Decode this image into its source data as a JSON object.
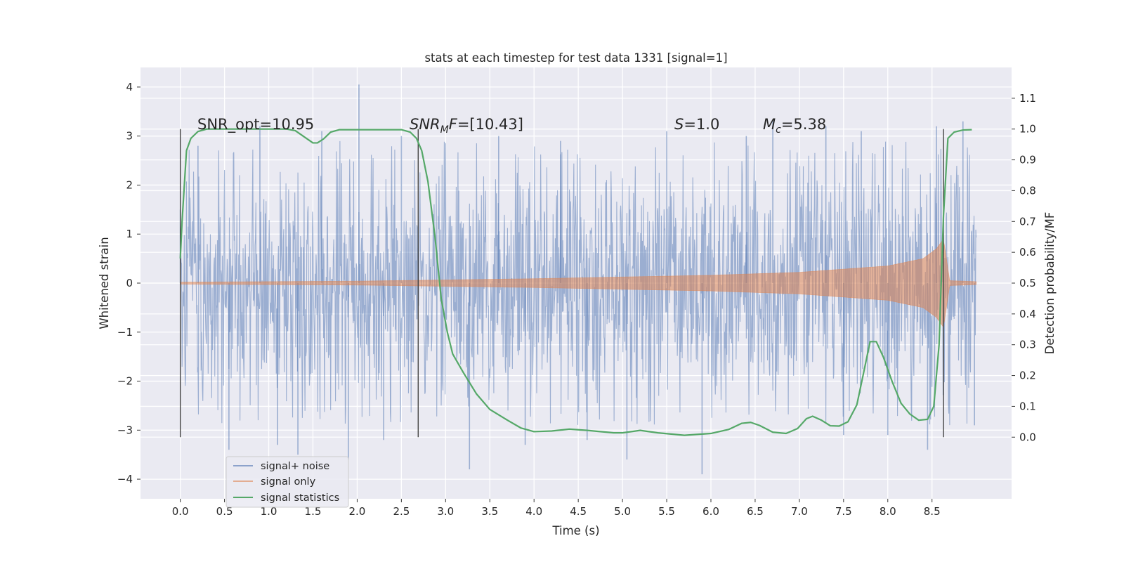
{
  "chart_data": {
    "type": "line",
    "title": "stats at each timestep for test data 1331 [signal=1]",
    "xlabel": "Time (s)",
    "ylabel": "Whitened strain",
    "y2label": "Detection probability/MF",
    "xlim": [
      -0.45,
      9.4
    ],
    "ylim": [
      -4.4,
      4.4
    ],
    "y2lim": [
      -0.2,
      1.2
    ],
    "x_ticks": [
      "0.0",
      "0.5",
      "1.0",
      "1.5",
      "2.0",
      "2.5",
      "3.0",
      "3.5",
      "4.0",
      "4.5",
      "5.0",
      "5.5",
      "6.0",
      "6.5",
      "7.0",
      "7.5",
      "8.0",
      "8.5"
    ],
    "y_ticks": [
      "4",
      "3",
      "2",
      "1",
      "0",
      "−1",
      "−2",
      "−3",
      "−4"
    ],
    "y2_ticks": [
      "1.1",
      "1.0",
      "0.9",
      "0.8",
      "0.7",
      "0.6",
      "0.5",
      "0.4",
      "0.3",
      "0.2",
      "0.1",
      "0.0"
    ],
    "grid": true,
    "background": "#eaeaf2",
    "annotations": [
      {
        "text": "SNR_opt=10.95",
        "x": 0.2,
        "y2": 0.99
      },
      {
        "text": "SNR_MF=[10.43]",
        "x": 2.6,
        "y2": 0.99
      },
      {
        "text": "S=1.0",
        "x": 5.6,
        "y2": 0.99
      },
      {
        "text": "M_c=5.38",
        "x": 6.6,
        "y2": 0.99
      }
    ],
    "vertical_lines": [
      0.0,
      2.69,
      8.63
    ],
    "legend": {
      "position": "lower-left",
      "entries": [
        "signal+ noise",
        "signal only",
        "signal statistics"
      ]
    },
    "series": [
      {
        "name": "signal+ noise",
        "color": "#4c72b0",
        "opacity": 0.5,
        "x_range": [
          0.0,
          9.0
        ],
        "typical_envelope": [
          -1.4,
          1.4
        ],
        "extremes": [
          {
            "x": 0.0,
            "y": 1.5
          },
          {
            "x": 0.2,
            "y": 2.8
          },
          {
            "x": 0.55,
            "y": -3.4
          },
          {
            "x": 0.9,
            "y": 3.2
          },
          {
            "x": 1.1,
            "y": -3.3
          },
          {
            "x": 1.33,
            "y": -3.5
          },
          {
            "x": 1.6,
            "y": 3.1
          },
          {
            "x": 1.9,
            "y": -3.6
          },
          {
            "x": 2.02,
            "y": 4.05
          },
          {
            "x": 2.3,
            "y": -3.2
          },
          {
            "x": 2.5,
            "y": 3.0
          },
          {
            "x": 3.27,
            "y": -3.8
          },
          {
            "x": 3.6,
            "y": 3.0
          },
          {
            "x": 3.9,
            "y": -3.3
          },
          {
            "x": 4.3,
            "y": 2.9
          },
          {
            "x": 4.6,
            "y": -3.2
          },
          {
            "x": 5.05,
            "y": -3.6
          },
          {
            "x": 5.5,
            "y": 3.1
          },
          {
            "x": 5.9,
            "y": -3.9
          },
          {
            "x": 6.4,
            "y": 3.0
          },
          {
            "x": 6.7,
            "y": 3.3
          },
          {
            "x": 7.3,
            "y": 3.2
          },
          {
            "x": 7.5,
            "y": -3.1
          },
          {
            "x": 7.7,
            "y": 3.1
          },
          {
            "x": 8.0,
            "y": -3.1
          },
          {
            "x": 8.45,
            "y": -3.4
          },
          {
            "x": 8.55,
            "y": 3.2
          },
          {
            "x": 8.85,
            "y": 3.3
          },
          {
            "x": 8.98,
            "y": -2.9
          }
        ]
      },
      {
        "name": "signal only",
        "color": "#dd8452",
        "opacity": 0.5,
        "x_range": [
          0.0,
          9.0
        ],
        "amplitude": [
          {
            "x": 0.0,
            "y": 0.02
          },
          {
            "x": 2.0,
            "y": 0.04
          },
          {
            "x": 4.0,
            "y": 0.09
          },
          {
            "x": 6.0,
            "y": 0.16
          },
          {
            "x": 7.0,
            "y": 0.22
          },
          {
            "x": 8.0,
            "y": 0.35
          },
          {
            "x": 8.4,
            "y": 0.5
          },
          {
            "x": 8.55,
            "y": 0.7
          },
          {
            "x": 8.63,
            "y": 0.9
          },
          {
            "x": 8.7,
            "y": 0.05
          },
          {
            "x": 9.0,
            "y": 0.03
          }
        ]
      },
      {
        "name": "signal statistics",
        "color": "#55a868",
        "axis": "right",
        "points": [
          {
            "x": 0.0,
            "y": 0.58
          },
          {
            "x": 0.02,
            "y": 0.7
          },
          {
            "x": 0.07,
            "y": 0.93
          },
          {
            "x": 0.12,
            "y": 0.97
          },
          {
            "x": 0.2,
            "y": 0.992
          },
          {
            "x": 0.3,
            "y": 1.0
          },
          {
            "x": 1.2,
            "y": 1.0
          },
          {
            "x": 1.3,
            "y": 0.995
          },
          {
            "x": 1.4,
            "y": 0.975
          },
          {
            "x": 1.5,
            "y": 0.955
          },
          {
            "x": 1.55,
            "y": 0.955
          },
          {
            "x": 1.62,
            "y": 0.968
          },
          {
            "x": 1.7,
            "y": 0.99
          },
          {
            "x": 1.8,
            "y": 0.998
          },
          {
            "x": 2.5,
            "y": 0.998
          },
          {
            "x": 2.6,
            "y": 0.99
          },
          {
            "x": 2.67,
            "y": 0.97
          },
          {
            "x": 2.73,
            "y": 0.93
          },
          {
            "x": 2.8,
            "y": 0.83
          },
          {
            "x": 2.88,
            "y": 0.65
          },
          {
            "x": 2.95,
            "y": 0.45
          },
          {
            "x": 3.02,
            "y": 0.34
          },
          {
            "x": 3.08,
            "y": 0.27
          },
          {
            "x": 3.2,
            "y": 0.21
          },
          {
            "x": 3.35,
            "y": 0.14
          },
          {
            "x": 3.5,
            "y": 0.09
          },
          {
            "x": 3.7,
            "y": 0.055
          },
          {
            "x": 3.85,
            "y": 0.03
          },
          {
            "x": 4.0,
            "y": 0.018
          },
          {
            "x": 4.2,
            "y": 0.02
          },
          {
            "x": 4.4,
            "y": 0.026
          },
          {
            "x": 4.6,
            "y": 0.022
          },
          {
            "x": 4.9,
            "y": 0.014
          },
          {
            "x": 5.0,
            "y": 0.014
          },
          {
            "x": 5.2,
            "y": 0.022
          },
          {
            "x": 5.4,
            "y": 0.014
          },
          {
            "x": 5.7,
            "y": 0.006
          },
          {
            "x": 6.0,
            "y": 0.012
          },
          {
            "x": 6.2,
            "y": 0.025
          },
          {
            "x": 6.35,
            "y": 0.045
          },
          {
            "x": 6.45,
            "y": 0.048
          },
          {
            "x": 6.55,
            "y": 0.038
          },
          {
            "x": 6.7,
            "y": 0.016
          },
          {
            "x": 6.85,
            "y": 0.012
          },
          {
            "x": 6.98,
            "y": 0.028
          },
          {
            "x": 7.08,
            "y": 0.06
          },
          {
            "x": 7.15,
            "y": 0.068
          },
          {
            "x": 7.25,
            "y": 0.055
          },
          {
            "x": 7.35,
            "y": 0.037
          },
          {
            "x": 7.45,
            "y": 0.036
          },
          {
            "x": 7.55,
            "y": 0.05
          },
          {
            "x": 7.65,
            "y": 0.105
          },
          {
            "x": 7.72,
            "y": 0.2
          },
          {
            "x": 7.8,
            "y": 0.31
          },
          {
            "x": 7.87,
            "y": 0.31
          },
          {
            "x": 7.95,
            "y": 0.26
          },
          {
            "x": 8.05,
            "y": 0.18
          },
          {
            "x": 8.15,
            "y": 0.11
          },
          {
            "x": 8.25,
            "y": 0.075
          },
          {
            "x": 8.35,
            "y": 0.055
          },
          {
            "x": 8.45,
            "y": 0.058
          },
          {
            "x": 8.52,
            "y": 0.1
          },
          {
            "x": 8.58,
            "y": 0.3
          },
          {
            "x": 8.63,
            "y": 0.72
          },
          {
            "x": 8.68,
            "y": 0.97
          },
          {
            "x": 8.75,
            "y": 0.99
          },
          {
            "x": 8.85,
            "y": 0.997
          },
          {
            "x": 8.95,
            "y": 0.998
          }
        ]
      }
    ]
  }
}
